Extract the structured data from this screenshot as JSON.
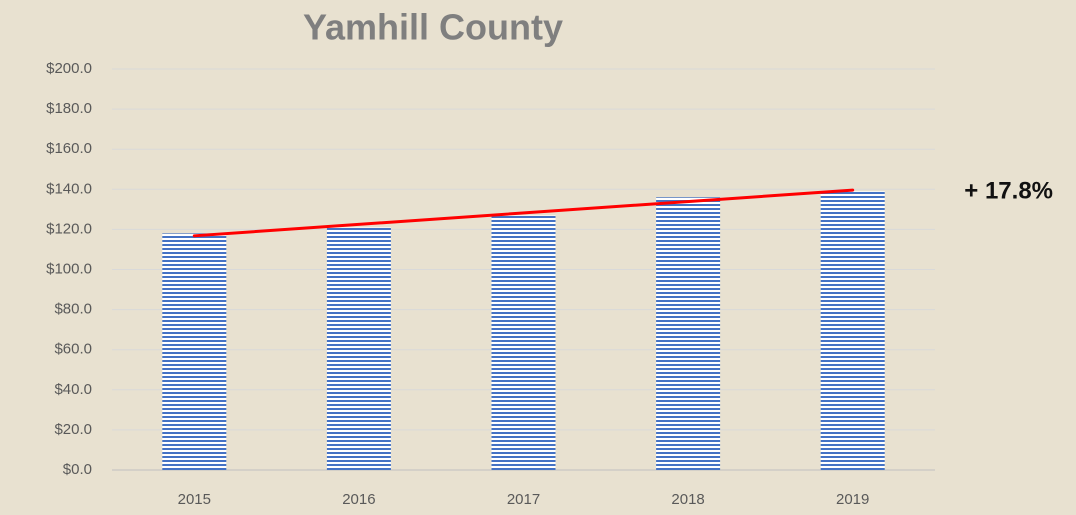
{
  "chart_data": {
    "type": "bar",
    "title": "Yamhill County",
    "categories": [
      "2015",
      "2016",
      "2017",
      "2018",
      "2019"
    ],
    "values": [
      118,
      121,
      127,
      136,
      139
    ],
    "color": "#4472c4",
    "ylim": [
      0,
      200
    ],
    "yticks": [
      {
        "value": 0,
        "label": "$0.0"
      },
      {
        "value": 20,
        "label": "$20.0"
      },
      {
        "value": 40,
        "label": "$40.0"
      },
      {
        "value": 60,
        "label": "$60.0"
      },
      {
        "value": 80,
        "label": "$80.0"
      },
      {
        "value": 100,
        "label": "$100.0"
      },
      {
        "value": 120,
        "label": "$120.0"
      },
      {
        "value": 140,
        "label": "$140.0"
      },
      {
        "value": 160,
        "label": "$160.0"
      },
      {
        "value": 180,
        "label": "$180.0"
      },
      {
        "value": 200,
        "label": "$200.0"
      }
    ],
    "grid": true,
    "trendline_color": "#ff0000",
    "annotation": "+ 17.8%"
  }
}
